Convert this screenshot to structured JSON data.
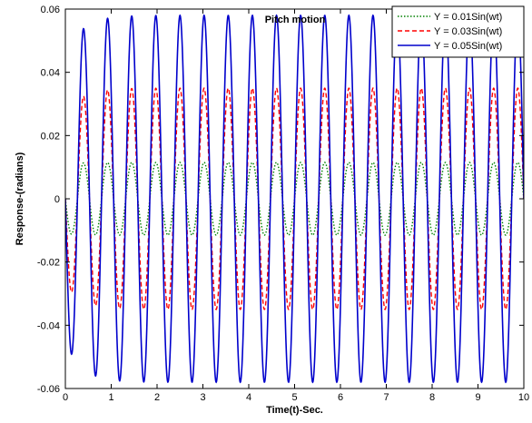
{
  "chart_data": {
    "type": "line",
    "title": "Pitch motion",
    "xlabel": "Time(t)-Sec.",
    "ylabel": "Response-(radians)",
    "xlim": [
      0,
      10
    ],
    "ylim": [
      -0.06,
      0.06
    ],
    "x_ticks": [
      "0",
      "1",
      "2",
      "3",
      "4",
      "5",
      "6",
      "7",
      "8",
      "9",
      "10"
    ],
    "y_ticks": [
      "-0.06",
      "-0.04",
      "-0.02",
      "0",
      "0.02",
      "0.04",
      "0.06"
    ],
    "grid": false,
    "legend_position": "top-right",
    "series": [
      {
        "name": "Y = 0.01Sin(wt)",
        "color": "#008000",
        "style": "dotted",
        "amplitude": 0.0115,
        "frequency_hz": 1.9,
        "initial_peak": -0.011,
        "x": [
          0,
          1,
          2,
          3,
          4,
          5,
          6,
          7,
          8,
          9,
          10
        ],
        "values": [
          0.0,
          -0.0065,
          0.0031,
          0.0007,
          -0.0043,
          0.0068,
          -0.0083,
          0.0085,
          -0.0075,
          0.0053,
          -0.0023
        ]
      },
      {
        "name": "Y = 0.03Sin(wt)",
        "color": "#ff0000",
        "style": "dashed",
        "amplitude": 0.035,
        "frequency_hz": 1.9,
        "initial_peak": -0.027,
        "x": [
          0,
          1,
          2,
          3,
          4,
          5,
          6,
          7,
          8,
          9,
          10
        ],
        "values": [
          0.0,
          -0.0197,
          0.0094,
          0.0022,
          -0.0131,
          0.0207,
          -0.0253,
          0.0259,
          -0.0228,
          0.0161,
          -0.007
        ]
      },
      {
        "name": "Y = 0.05Sin(wt)",
        "color": "#0000cc",
        "style": "solid",
        "amplitude": 0.058,
        "frequency_hz": 1.9,
        "initial_peak": -0.045,
        "x": [
          0,
          1,
          2,
          3,
          4,
          5,
          6,
          7,
          8,
          9,
          10
        ],
        "values": [
          0.0,
          -0.0327,
          0.0156,
          0.0036,
          -0.0217,
          0.0344,
          -0.042,
          0.0429,
          -0.0378,
          0.0267,
          -0.0116
        ]
      }
    ]
  }
}
